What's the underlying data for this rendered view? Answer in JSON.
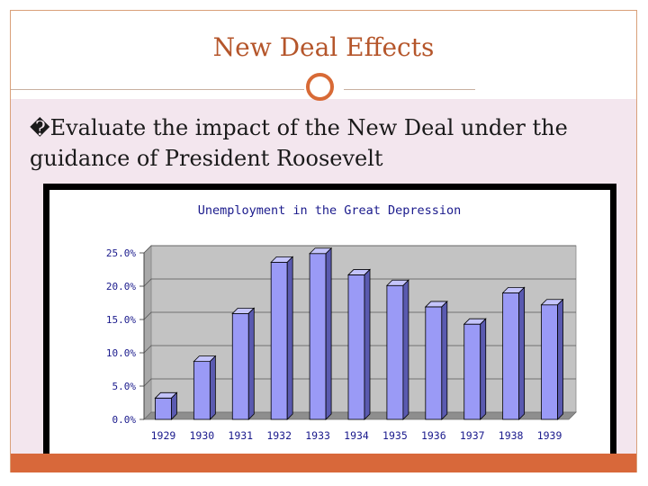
{
  "slide": {
    "title": "New Deal Effects",
    "bullet_glyph": "�",
    "bullet_text": "Evaluate the impact of the New Deal under the guidance of President Roosevelt"
  },
  "colors": {
    "accent": "#d86a36",
    "title": "#b5562b",
    "content_bg": "#f3e6ee",
    "bar": "#9a9af6"
  },
  "chart_data": {
    "type": "bar",
    "title": "Unemployment in the Great Depression",
    "categories": [
      "1929",
      "1930",
      "1931",
      "1932",
      "1933",
      "1934",
      "1935",
      "1936",
      "1937",
      "1938",
      "1939"
    ],
    "values": [
      3.2,
      8.7,
      15.9,
      23.6,
      24.9,
      21.7,
      20.1,
      16.9,
      14.3,
      19.0,
      17.2
    ],
    "ylim": [
      0,
      25
    ],
    "yticks": [
      0,
      5,
      10,
      15,
      20,
      25
    ],
    "ytick_labels": [
      "0.0%",
      "5.0%",
      "10.0%",
      "15.0%",
      "20.0%",
      "25.0%"
    ],
    "xlabel": "",
    "ylabel": ""
  }
}
